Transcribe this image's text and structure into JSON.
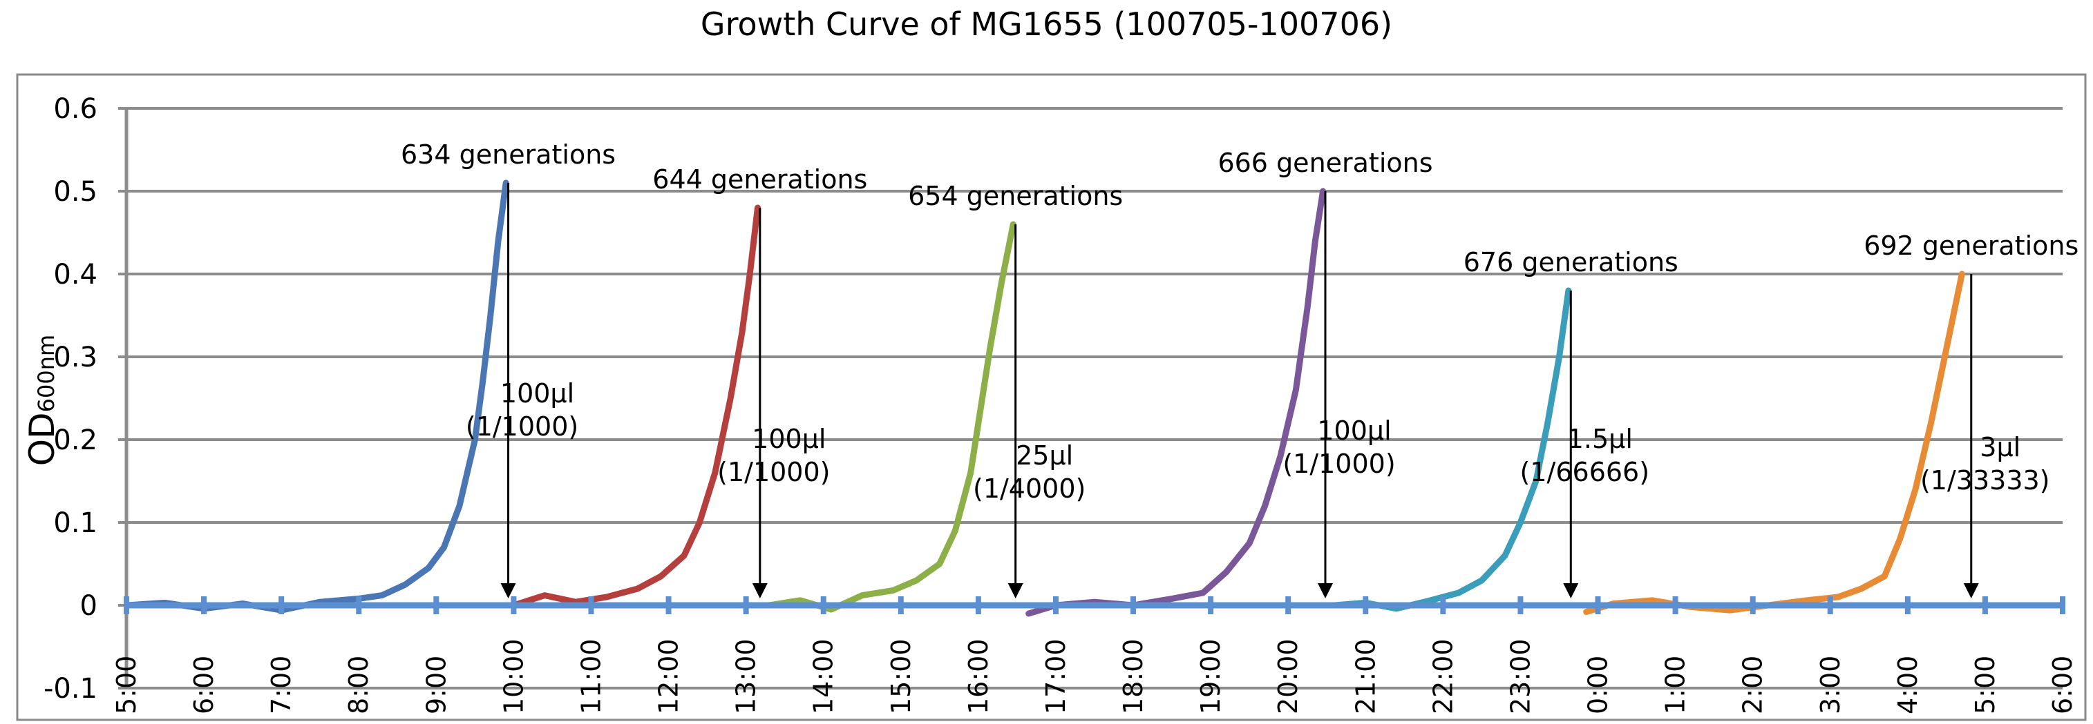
{
  "chart_data": {
    "type": "line",
    "title": "Growth Curve of MG1655 (100705-100706)",
    "ylabel": "OD",
    "ylabel_sub": "600nm",
    "xlabel": "",
    "ylim": [
      -0.1,
      0.6
    ],
    "y_ticks": [
      "-0.1",
      "0",
      "0.1",
      "0.2",
      "0.3",
      "0.4",
      "0.5",
      "0.6"
    ],
    "xlim_hours": [
      5,
      30
    ],
    "x_ticks": [
      "5:00",
      "6:00",
      "7:00",
      "8:00",
      "9:00",
      "10:00",
      "11:00",
      "12:00",
      "13:00",
      "14:00",
      "15:00",
      "16:00",
      "17:00",
      "18:00",
      "19:00",
      "20:00",
      "21:00",
      "22:00",
      "23:00",
      "0:00",
      "1:00",
      "2:00",
      "3:00",
      "4:00",
      "5:00",
      "6:00"
    ],
    "grid": true,
    "legend": "none",
    "zero_axis_color": "#5B8FD0",
    "series": [
      {
        "color": "#4A76B3",
        "points": [
          [
            5.0,
            0.0
          ],
          [
            5.5,
            0.003
          ],
          [
            6.0,
            -0.004
          ],
          [
            6.5,
            0.002
          ],
          [
            7.0,
            -0.006
          ],
          [
            7.5,
            0.004
          ],
          [
            8.0,
            0.008
          ],
          [
            8.3,
            0.012
          ],
          [
            8.6,
            0.025
          ],
          [
            8.9,
            0.045
          ],
          [
            9.1,
            0.07
          ],
          [
            9.3,
            0.12
          ],
          [
            9.5,
            0.2
          ],
          [
            9.6,
            0.27
          ],
          [
            9.7,
            0.35
          ],
          [
            9.8,
            0.44
          ],
          [
            9.9,
            0.51
          ]
        ]
      },
      {
        "color": "#B43F3C",
        "points": [
          [
            10.0,
            0.0
          ],
          [
            10.4,
            0.012
          ],
          [
            10.8,
            0.004
          ],
          [
            11.2,
            0.01
          ],
          [
            11.6,
            0.02
          ],
          [
            11.9,
            0.035
          ],
          [
            12.2,
            0.06
          ],
          [
            12.4,
            0.1
          ],
          [
            12.6,
            0.16
          ],
          [
            12.8,
            0.25
          ],
          [
            12.95,
            0.33
          ],
          [
            13.05,
            0.4
          ],
          [
            13.15,
            0.48
          ]
        ]
      },
      {
        "color": "#8CAF48",
        "points": [
          [
            13.3,
            0.0
          ],
          [
            13.7,
            0.006
          ],
          [
            14.1,
            -0.005
          ],
          [
            14.5,
            0.012
          ],
          [
            14.9,
            0.018
          ],
          [
            15.2,
            0.03
          ],
          [
            15.5,
            0.05
          ],
          [
            15.7,
            0.09
          ],
          [
            15.9,
            0.16
          ],
          [
            16.0,
            0.22
          ],
          [
            16.15,
            0.31
          ],
          [
            16.3,
            0.39
          ],
          [
            16.45,
            0.46
          ]
        ]
      },
      {
        "color": "#7A5799",
        "points": [
          [
            16.65,
            -0.01
          ],
          [
            17.0,
            0.0
          ],
          [
            17.5,
            0.004
          ],
          [
            18.0,
            0.0
          ],
          [
            18.5,
            0.008
          ],
          [
            18.9,
            0.015
          ],
          [
            19.2,
            0.04
          ],
          [
            19.5,
            0.075
          ],
          [
            19.7,
            0.12
          ],
          [
            19.9,
            0.18
          ],
          [
            20.1,
            0.26
          ],
          [
            20.25,
            0.36
          ],
          [
            20.35,
            0.44
          ],
          [
            20.45,
            0.5
          ]
        ]
      },
      {
        "color": "#3A9EBA",
        "points": [
          [
            20.6,
            0.0
          ],
          [
            21.0,
            0.003
          ],
          [
            21.4,
            -0.004
          ],
          [
            21.8,
            0.005
          ],
          [
            22.2,
            0.015
          ],
          [
            22.5,
            0.03
          ],
          [
            22.8,
            0.06
          ],
          [
            23.0,
            0.1
          ],
          [
            23.2,
            0.15
          ],
          [
            23.35,
            0.22
          ],
          [
            23.5,
            0.3
          ],
          [
            23.62,
            0.38
          ]
        ]
      },
      {
        "color": "#E88B35",
        "points": [
          [
            23.85,
            -0.008
          ],
          [
            24.2,
            0.002
          ],
          [
            24.7,
            0.006
          ],
          [
            25.2,
            -0.002
          ],
          [
            25.7,
            -0.006
          ],
          [
            26.2,
            0.0
          ],
          [
            26.7,
            0.006
          ],
          [
            27.1,
            0.01
          ],
          [
            27.4,
            0.02
          ],
          [
            27.7,
            0.035
          ],
          [
            27.9,
            0.08
          ],
          [
            28.1,
            0.14
          ],
          [
            28.3,
            0.22
          ],
          [
            28.5,
            0.31
          ],
          [
            28.7,
            0.4
          ]
        ]
      }
    ],
    "annotations": [
      {
        "x": 9.93,
        "y_top": 0.51,
        "generations": "634 generations",
        "line1": "100μl",
        "line2": "(1/1000)"
      },
      {
        "x": 13.18,
        "y_top": 0.48,
        "generations": "644 generations",
        "line1": "100μl",
        "line2": "(1/1000)"
      },
      {
        "x": 16.48,
        "y_top": 0.46,
        "generations": "654 generations",
        "line1": "25μl",
        "line2": "(1/4000)"
      },
      {
        "x": 20.48,
        "y_top": 0.5,
        "generations": "666 generations",
        "line1": "100μl",
        "line2": "(1/1000)"
      },
      {
        "x": 23.65,
        "y_top": 0.38,
        "generations": "676 generations",
        "line1": "1.5μl",
        "line2": "(1/66666)"
      },
      {
        "x": 28.82,
        "y_top": 0.4,
        "generations": "692 generations",
        "line1": "3μl",
        "line2": "(1/33333)"
      }
    ]
  }
}
